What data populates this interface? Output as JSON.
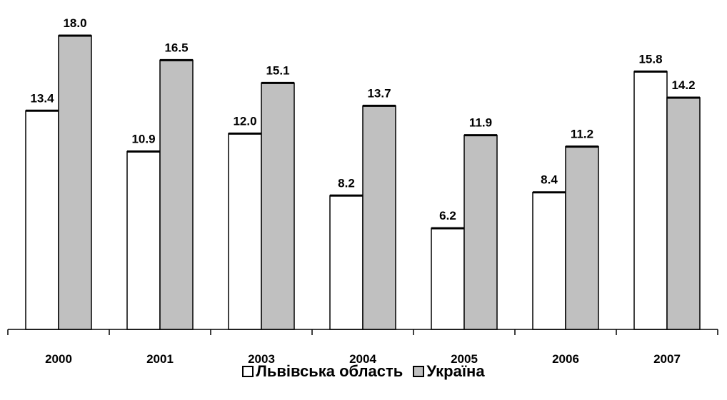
{
  "chart_data": {
    "type": "bar",
    "categories": [
      "2000",
      "2001",
      "2003",
      "2004",
      "2005",
      "2006",
      "2007"
    ],
    "series": [
      {
        "name": "Львівська область",
        "values": [
          13.4,
          10.9,
          12.0,
          8.2,
          6.2,
          8.4,
          15.8
        ],
        "color": "#ffffff"
      },
      {
        "name": "Україна",
        "values": [
          18.0,
          16.5,
          15.1,
          13.7,
          11.9,
          11.2,
          14.2
        ],
        "color": "#c0c0c0"
      }
    ],
    "title": "",
    "xlabel": "",
    "ylabel": "",
    "ylim": [
      0,
      18
    ],
    "grid": false,
    "legend_position": "bottom",
    "value_format": "1 decimal"
  }
}
